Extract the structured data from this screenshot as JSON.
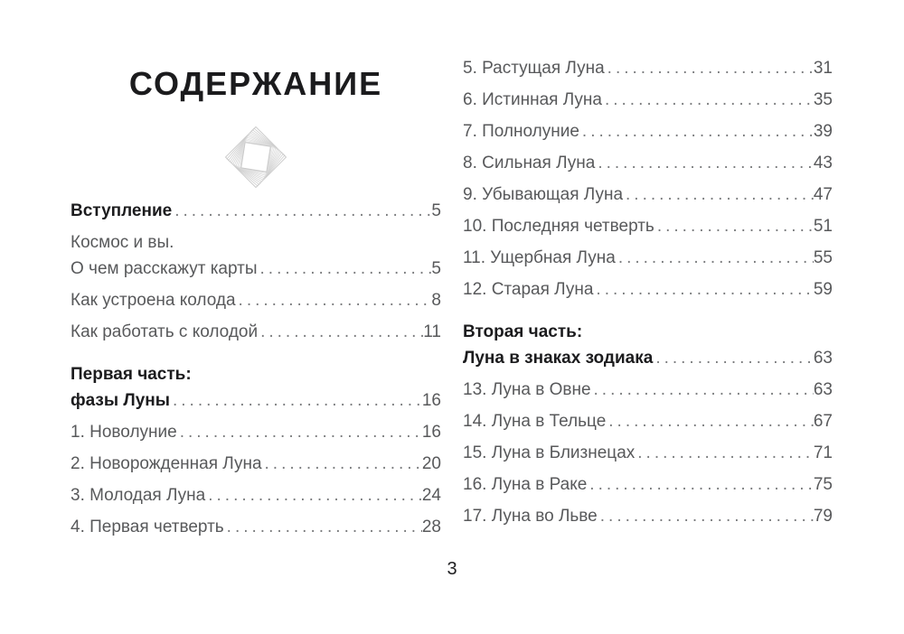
{
  "header": {
    "title": "СОДЕРЖАНИЕ",
    "ornament": "diamond-swirl-ornament"
  },
  "footer": {
    "page_number": "3"
  },
  "toc": {
    "left_column": [
      {
        "lines": [
          "Вступление"
        ],
        "page": "5",
        "bold": true,
        "section": false
      },
      {
        "lines": [
          "Космос и вы.",
          "О чем расскажут карты"
        ],
        "page": "5",
        "bold": false,
        "section": false
      },
      {
        "lines": [
          "Как устроена колода"
        ],
        "page": "8",
        "bold": false,
        "section": false
      },
      {
        "lines": [
          "Как работать с колодой"
        ],
        "page": "11",
        "bold": false,
        "section": false
      },
      {
        "lines": [
          "Первая часть:",
          "фазы Луны"
        ],
        "page": "16",
        "bold": true,
        "section": true
      },
      {
        "lines": [
          "1. Новолуние"
        ],
        "page": "16",
        "bold": false,
        "section": false
      },
      {
        "lines": [
          "2. Новорожденная Луна"
        ],
        "page": "20",
        "bold": false,
        "section": false
      },
      {
        "lines": [
          "3. Молодая Луна"
        ],
        "page": "24",
        "bold": false,
        "section": false
      },
      {
        "lines": [
          "4. Первая четверть"
        ],
        "page": "28",
        "bold": false,
        "section": false
      }
    ],
    "right_column": [
      {
        "lines": [
          "5. Растущая Луна"
        ],
        "page": "31",
        "bold": false,
        "section": false
      },
      {
        "lines": [
          "6. Истинная Луна"
        ],
        "page": "35",
        "bold": false,
        "section": false
      },
      {
        "lines": [
          "7. Полнолуние"
        ],
        "page": "39",
        "bold": false,
        "section": false
      },
      {
        "lines": [
          "8. Сильная Луна"
        ],
        "page": "43",
        "bold": false,
        "section": false
      },
      {
        "lines": [
          "9. Убывающая Луна"
        ],
        "page": "47",
        "bold": false,
        "section": false
      },
      {
        "lines": [
          "10. Последняя четверть"
        ],
        "page": "51",
        "bold": false,
        "section": false
      },
      {
        "lines": [
          "11. Ущербная Луна"
        ],
        "page": "55",
        "bold": false,
        "section": false
      },
      {
        "lines": [
          "12. Старая Луна"
        ],
        "page": "59",
        "bold": false,
        "section": false
      },
      {
        "lines": [
          "Вторая часть:",
          "Луна в знаках зодиака"
        ],
        "page": "63",
        "bold": true,
        "section": true
      },
      {
        "lines": [
          "13. Луна в Овне"
        ],
        "page": "63",
        "bold": false,
        "section": false
      },
      {
        "lines": [
          "14. Луна в Тельце"
        ],
        "page": "67",
        "bold": false,
        "section": false
      },
      {
        "lines": [
          "15. Луна в Близнецах"
        ],
        "page": "71",
        "bold": false,
        "section": false
      },
      {
        "lines": [
          "16. Луна в Раке"
        ],
        "page": "75",
        "bold": false,
        "section": false
      },
      {
        "lines": [
          "17. Луна во Льве"
        ],
        "page": "79",
        "bold": false,
        "section": false
      }
    ]
  }
}
